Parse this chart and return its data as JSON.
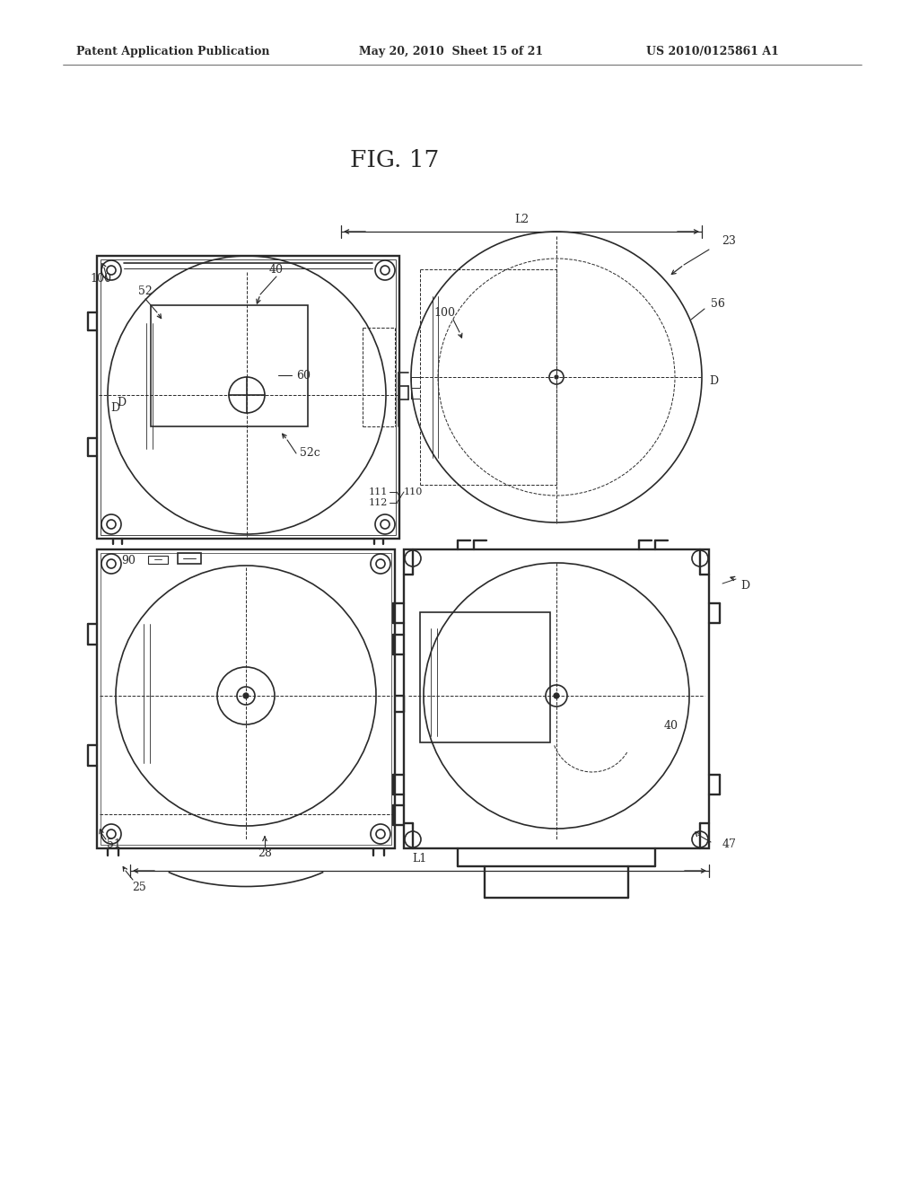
{
  "bg_color": "#ffffff",
  "line_color": "#2a2a2a",
  "title": "FIG. 17",
  "header_left": "Patent Application Publication",
  "header_mid": "May 20, 2010  Sheet 15 of 21",
  "header_right": "US 2010/0125861 A1",
  "fig_width": 10.24,
  "fig_height": 13.2
}
